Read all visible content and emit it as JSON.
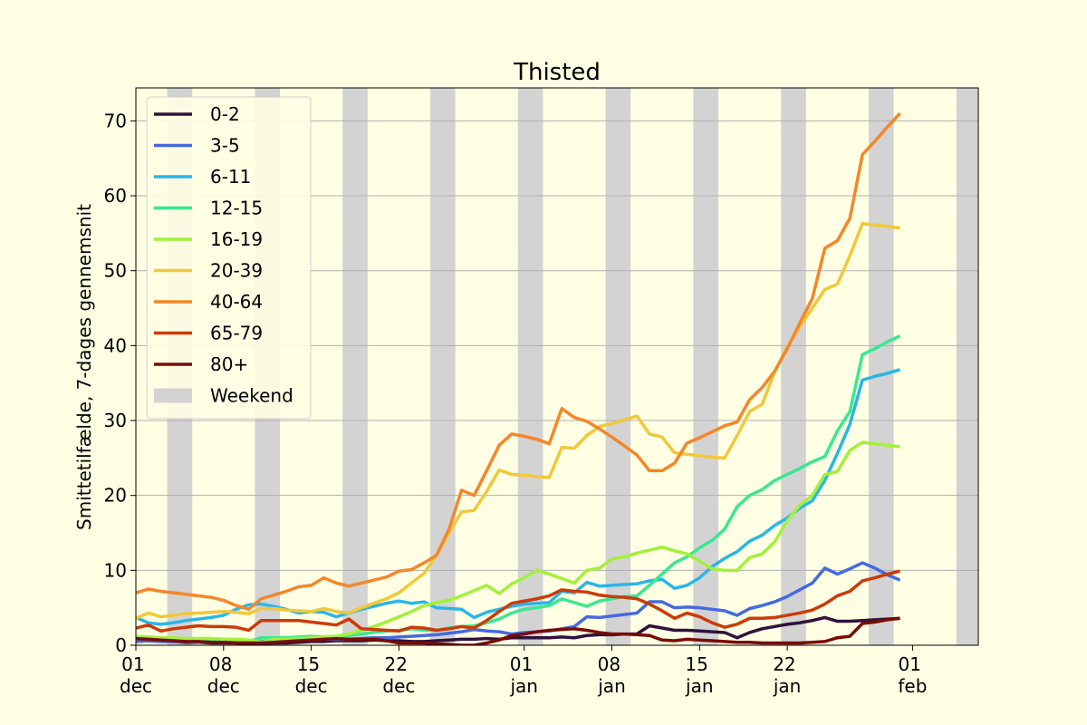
{
  "chart_data": {
    "type": "line",
    "title": "Thisted",
    "ylabel": "Smittetilfælde, 7-dages gennemsnit",
    "x": [
      0,
      1,
      2,
      3,
      4,
      5,
      6,
      7,
      8,
      9,
      10,
      11,
      12,
      13,
      14,
      15,
      16,
      17,
      18,
      19,
      20,
      21,
      22,
      23,
      24,
      25,
      26,
      27,
      28,
      29,
      30,
      31,
      32,
      33,
      34,
      35,
      36,
      37,
      38,
      39,
      40,
      41,
      42,
      43,
      44,
      45,
      46,
      47,
      48,
      49,
      50,
      51,
      52,
      53,
      54,
      55,
      56,
      57,
      58,
      59,
      60,
      61
    ],
    "xlim": [
      0,
      67.25
    ],
    "ylim": [
      0,
      74.4
    ],
    "xticks": [
      {
        "value": 0,
        "label": "01 dec"
      },
      {
        "value": 7,
        "label": "08 dec"
      },
      {
        "value": 14,
        "label": "15 dec"
      },
      {
        "value": 21,
        "label": "22 dec"
      },
      {
        "value": 31,
        "label": "01 jan"
      },
      {
        "value": 38,
        "label": "08 jan"
      },
      {
        "value": 45,
        "label": "15 jan"
      },
      {
        "value": 52,
        "label": "22 jan"
      },
      {
        "value": 62,
        "label": "01 feb"
      }
    ],
    "yticks": [
      0,
      10,
      20,
      30,
      40,
      50,
      60,
      70
    ],
    "grid": true,
    "legend": "upper left",
    "weekend": {
      "name": "Weekend",
      "color": "#d3d3d3",
      "spans": [
        [
          2.5,
          4.5
        ],
        [
          9.5,
          11.5
        ],
        [
          16.5,
          18.5
        ],
        [
          23.5,
          25.5
        ],
        [
          30.5,
          32.5
        ],
        [
          37.5,
          39.5
        ],
        [
          44.5,
          46.5
        ],
        [
          51.5,
          53.5
        ],
        [
          58.5,
          60.5
        ],
        [
          65.5,
          67.5
        ]
      ]
    },
    "series": [
      {
        "name": "0-2",
        "color": "#30123b",
        "values": [
          0.5,
          0.6,
          0.5,
          0.5,
          0.4,
          0.4,
          0.3,
          0.3,
          0.3,
          0.2,
          0.2,
          0.3,
          0.3,
          0.4,
          0.5,
          0.5,
          0.6,
          0.6,
          0.6,
          0.7,
          0.6,
          0.6,
          0.5,
          0.5,
          0.6,
          0.7,
          0.8,
          0.8,
          0.9,
          0.8,
          1.0,
          1.0,
          1.0,
          1.0,
          1.1,
          1.0,
          1.3,
          1.4,
          1.4,
          1.5,
          1.5,
          2.6,
          2.3,
          2.0,
          2.0,
          1.9,
          1.8,
          1.7,
          1.0,
          1.7,
          2.2,
          2.5,
          2.8,
          3.0,
          3.3,
          3.7,
          3.2,
          3.2,
          3.3,
          3.4,
          3.5,
          3.6
        ]
      },
      {
        "name": "3-5",
        "color": "#4669e0",
        "values": [
          0.5,
          0.6,
          0.5,
          0.5,
          0.5,
          0.4,
          0.4,
          0.4,
          0.4,
          0.3,
          0.5,
          0.6,
          0.6,
          0.7,
          0.7,
          0.8,
          0.8,
          0.8,
          0.9,
          1.0,
          1.0,
          1.1,
          1.2,
          1.3,
          1.4,
          1.6,
          1.8,
          2.1,
          1.9,
          1.8,
          1.5,
          1.7,
          1.8,
          1.9,
          2.2,
          2.5,
          3.8,
          3.7,
          3.9,
          4.1,
          4.3,
          5.8,
          5.8,
          5.0,
          5.1,
          5.0,
          4.8,
          4.6,
          4.0,
          4.9,
          5.3,
          5.8,
          6.5,
          7.4,
          8.3,
          10.3,
          9.5,
          10.2,
          11.0,
          10.3,
          9.4,
          8.7
        ]
      },
      {
        "name": "6-11",
        "color": "#2ab5e8",
        "values": [
          3.7,
          3.0,
          2.8,
          3.0,
          3.3,
          3.5,
          3.7,
          4.0,
          4.8,
          5.4,
          5.5,
          5.2,
          4.8,
          4.3,
          4.5,
          4.4,
          3.8,
          4.3,
          4.8,
          5.2,
          5.6,
          5.9,
          5.6,
          5.8,
          5.0,
          4.9,
          4.8,
          3.7,
          4.4,
          4.8,
          5.2,
          5.5,
          5.6,
          5.7,
          7.2,
          7.0,
          8.4,
          7.9,
          8.0,
          8.1,
          8.2,
          8.6,
          8.8,
          7.6,
          8.0,
          9.0,
          10.5,
          11.6,
          12.5,
          13.9,
          14.7,
          16.0,
          17.0,
          18.3,
          19.3,
          22.0,
          25.6,
          29.5,
          35.4,
          35.9,
          36.3,
          36.8
        ]
      },
      {
        "name": "12-15",
        "color": "#38e890",
        "values": [
          1.0,
          0.9,
          0.8,
          0.7,
          0.7,
          0.6,
          0.6,
          0.6,
          0.5,
          0.5,
          1.0,
          1.0,
          1.0,
          1.1,
          1.2,
          1.1,
          1.2,
          1.3,
          1.5,
          1.7,
          1.9,
          2.0,
          2.2,
          2.0,
          2.0,
          2.3,
          2.5,
          2.6,
          3.0,
          3.5,
          4.3,
          4.8,
          5.0,
          5.3,
          6.2,
          5.7,
          5.2,
          5.9,
          6.2,
          6.5,
          6.6,
          8.0,
          9.5,
          11.0,
          11.8,
          13.0,
          14.0,
          15.5,
          18.5,
          20.0,
          20.8,
          22.0,
          22.8,
          23.6,
          24.5,
          25.2,
          28.6,
          31.2,
          38.8,
          39.6,
          40.5,
          41.3
        ]
      },
      {
        "name": "16-19",
        "color": "#a3f03a",
        "values": [
          1.2,
          1.1,
          1.0,
          1.0,
          0.9,
          0.9,
          0.9,
          0.8,
          0.8,
          0.7,
          0.4,
          0.8,
          0.8,
          0.9,
          1.0,
          1.1,
          1.2,
          1.5,
          2.0,
          2.5,
          3.1,
          3.8,
          4.5,
          5.3,
          5.7,
          6.0,
          6.6,
          7.3,
          8.0,
          6.9,
          8.2,
          9.0,
          10.0,
          9.5,
          8.9,
          8.3,
          10.0,
          10.3,
          11.5,
          11.8,
          12.3,
          12.7,
          13.1,
          12.6,
          12.2,
          11.2,
          10.2,
          10.0,
          10.0,
          11.7,
          12.2,
          13.8,
          16.6,
          18.7,
          20.0,
          22.8,
          23.2,
          26.0,
          27.1,
          26.9,
          26.7,
          26.5
        ]
      },
      {
        "name": "20-39",
        "color": "#f0c83a",
        "values": [
          3.6,
          4.3,
          3.8,
          4.0,
          4.2,
          4.3,
          4.4,
          4.5,
          4.4,
          4.2,
          4.9,
          4.9,
          4.7,
          4.6,
          4.5,
          4.9,
          4.5,
          4.3,
          5.0,
          5.6,
          6.2,
          7.0,
          8.3,
          9.6,
          12.0,
          15.0,
          17.8,
          18.0,
          20.5,
          23.4,
          22.8,
          22.7,
          22.5,
          22.4,
          26.4,
          26.3,
          28.0,
          29.2,
          29.6,
          30.1,
          30.6,
          28.2,
          27.8,
          25.7,
          25.5,
          25.3,
          25.1,
          25.0,
          28.0,
          31.2,
          32.2,
          36.5,
          39.8,
          42.5,
          45.0,
          47.5,
          48.2,
          52.0,
          56.3,
          56.1,
          55.9,
          55.7
        ]
      },
      {
        "name": "40-64",
        "color": "#f5862a",
        "values": [
          7.0,
          7.5,
          7.2,
          7.0,
          6.8,
          6.6,
          6.4,
          6.0,
          5.3,
          4.8,
          6.2,
          6.7,
          7.2,
          7.8,
          8.0,
          9.0,
          8.3,
          7.9,
          8.3,
          8.7,
          9.1,
          9.9,
          10.1,
          11.0,
          12.0,
          15.5,
          20.7,
          20.0,
          23.3,
          26.7,
          28.2,
          27.9,
          27.5,
          26.9,
          31.6,
          30.4,
          29.9,
          28.9,
          27.8,
          26.6,
          25.4,
          23.3,
          23.3,
          24.3,
          27.0,
          27.7,
          28.5,
          29.3,
          29.8,
          32.8,
          34.4,
          36.6,
          39.6,
          43.0,
          46.3,
          53.0,
          54.0,
          57.0,
          65.5,
          67.3,
          69.2,
          71.0
        ]
      },
      {
        "name": "65-79",
        "color": "#cc3a0a",
        "values": [
          2.3,
          2.7,
          1.9,
          2.2,
          2.4,
          2.6,
          2.5,
          2.5,
          2.4,
          2.0,
          3.3,
          3.3,
          3.3,
          3.3,
          3.1,
          2.9,
          2.7,
          3.5,
          2.2,
          2.1,
          2.0,
          1.9,
          2.4,
          2.3,
          2.0,
          2.2,
          2.5,
          2.3,
          3.3,
          4.5,
          5.6,
          5.9,
          6.2,
          6.6,
          7.4,
          7.2,
          7.1,
          6.7,
          6.5,
          6.4,
          6.2,
          5.5,
          4.6,
          3.6,
          4.3,
          3.8,
          3.0,
          2.4,
          2.8,
          3.6,
          3.6,
          3.7,
          4.0,
          4.3,
          4.7,
          5.5,
          6.6,
          7.2,
          8.6,
          9.0,
          9.5,
          9.9
        ]
      },
      {
        "name": "80+",
        "color": "#7a0b04",
        "values": [
          0.9,
          0.8,
          0.7,
          0.6,
          0.5,
          0.5,
          0.4,
          0.4,
          0.3,
          0.3,
          0.3,
          0.4,
          0.5,
          0.6,
          0.7,
          0.8,
          0.9,
          0.8,
          0.8,
          0.8,
          0.6,
          0.3,
          0.3,
          0.3,
          0.2,
          0.1,
          0.0,
          0.0,
          0.3,
          0.7,
          1.3,
          1.5,
          1.8,
          2.0,
          2.1,
          2.2,
          2.0,
          1.7,
          1.5,
          1.5,
          1.4,
          1.3,
          0.7,
          0.6,
          0.8,
          0.7,
          0.6,
          0.5,
          0.4,
          0.4,
          0.3,
          0.3,
          0.3,
          0.3,
          0.4,
          0.5,
          1.0,
          1.2,
          2.9,
          3.1,
          3.4,
          3.6
        ]
      }
    ]
  }
}
